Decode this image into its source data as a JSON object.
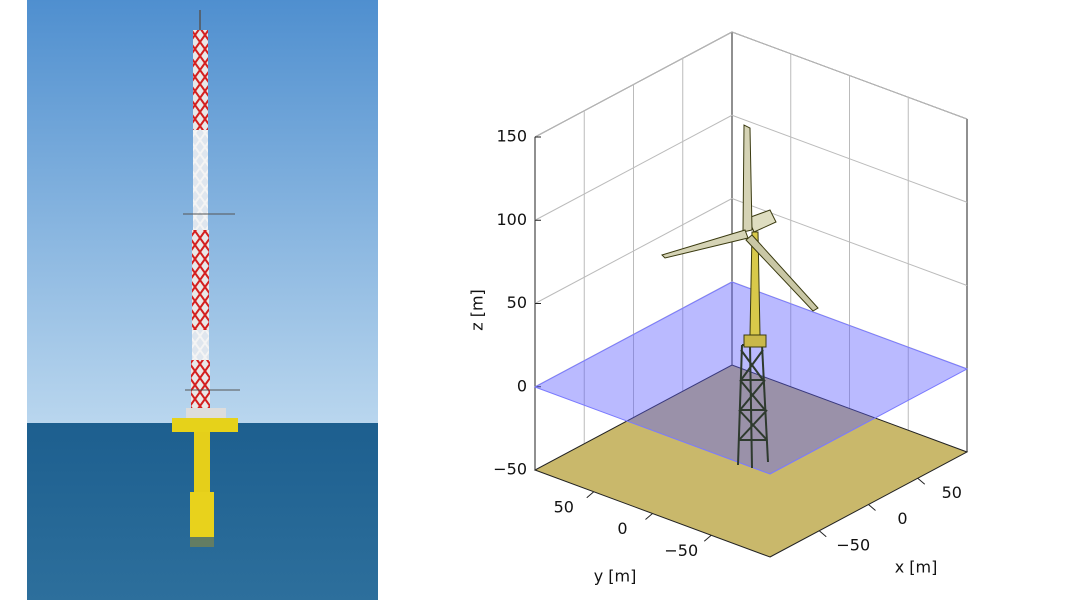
{
  "plot": {
    "xlabel": "x [m]",
    "ylabel": "y [m]",
    "zlabel": "z [m]",
    "xlim": [
      -100,
      100
    ],
    "ylim": [
      -100,
      100
    ],
    "zlim": [
      -50,
      150
    ],
    "xticks": [
      {
        "value": -50,
        "label": "−50"
      },
      0,
      50
    ],
    "yticks": [
      {
        "value": -50,
        "label": "−50"
      },
      0,
      50
    ],
    "zticks": [
      {
        "value": -50,
        "label": "−50"
      },
      0,
      50,
      100,
      150
    ]
  }
}
